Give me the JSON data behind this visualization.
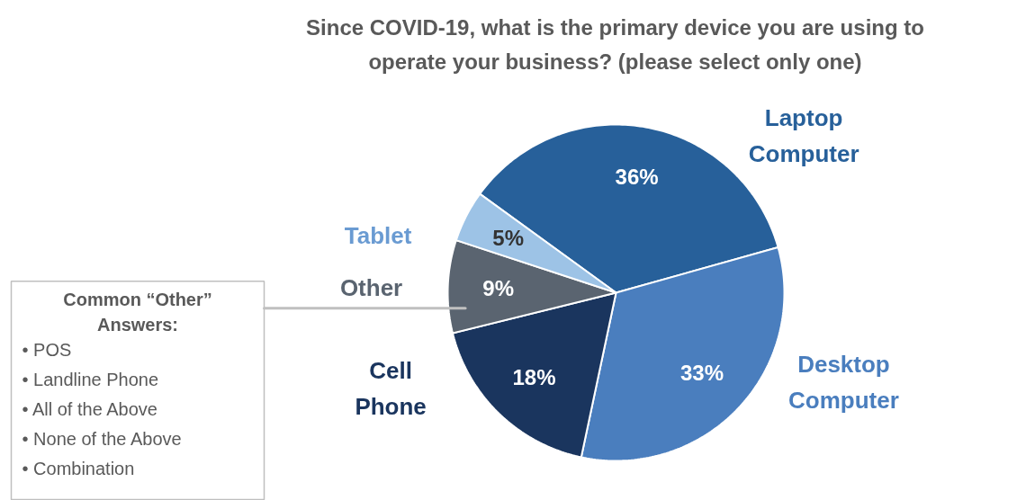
{
  "chart_data": {
    "type": "pie",
    "title": "Since COVID-19, what is the primary device you are using to operate your business? (please select only one)",
    "categories": [
      "Laptop Computer",
      "Desktop Computer",
      "Cell Phone",
      "Other",
      "Tablet"
    ],
    "values": [
      36,
      33,
      18,
      9,
      5
    ],
    "colors": [
      "#27609a",
      "#4a7ebe",
      "#1a355e",
      "#5a6470",
      "#9dc3e6"
    ],
    "value_labels": [
      "36%",
      "33%",
      "18%",
      "9%",
      "5%"
    ],
    "annotations": [
      "Common “Other” Answers:",
      "•  POS",
      "•  Landline Phone",
      "•  All of the Above",
      "•  None of the Above",
      "•  Combination"
    ]
  }
}
